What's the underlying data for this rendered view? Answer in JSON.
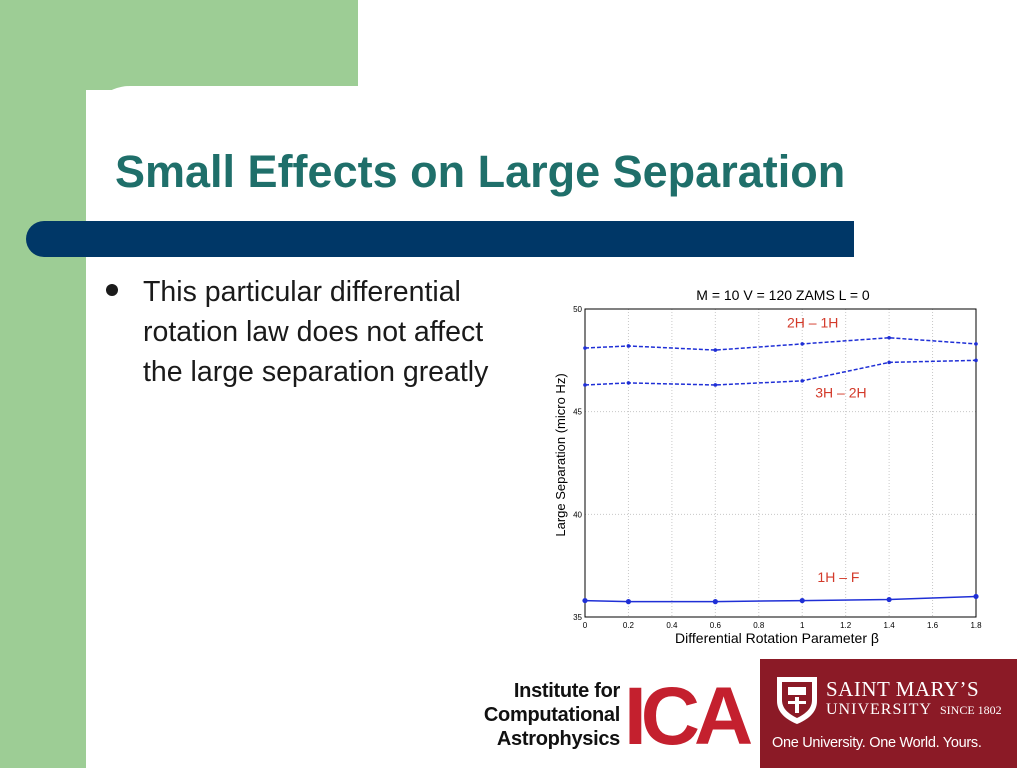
{
  "slide": {
    "title": "Small Effects on Large Separation",
    "bullets": [
      "This particular differential rotation law does not affect the large separation greatly"
    ]
  },
  "colors": {
    "title": "#1f6f6a",
    "bar": "#003767",
    "green": "#9dcd95",
    "series": "#1f2fd6",
    "annotation": "#d33a2a"
  },
  "chart_data": {
    "type": "line",
    "title": "M = 10  V = 120  ZAMS  L = 0",
    "xlabel": "Differential Rotation Parameter β",
    "ylabel": "Large Separation (micro Hz)",
    "xlim": [
      0,
      1.8
    ],
    "ylim": [
      35,
      50
    ],
    "xticks": [
      "0",
      "0.2",
      "0.4",
      "0.6",
      "0.8",
      "1",
      "1.2",
      "1.4",
      "1.6",
      "1.8"
    ],
    "yticks": [
      "35",
      "40",
      "45",
      "50"
    ],
    "grid": true,
    "series": [
      {
        "name": "2H – 1H",
        "style": "dashed",
        "x": [
          0,
          0.2,
          0.6,
          1.0,
          1.4,
          1.8
        ],
        "y": [
          48.1,
          48.2,
          48.0,
          48.3,
          48.6,
          48.3
        ]
      },
      {
        "name": "3H – 2H",
        "style": "dashed",
        "x": [
          0,
          0.2,
          0.6,
          1.0,
          1.4,
          1.8
        ],
        "y": [
          46.3,
          46.4,
          46.3,
          46.5,
          47.4,
          47.5
        ]
      },
      {
        "name": "1H – F",
        "style": "solid",
        "x": [
          0,
          0.2,
          0.6,
          1.0,
          1.4,
          1.8
        ],
        "y": [
          35.8,
          35.75,
          35.75,
          35.8,
          35.85,
          36.0
        ]
      }
    ]
  },
  "logos": {
    "ica": {
      "line1": "Institute for",
      "line2": "Computational",
      "line3": "Astrophysics",
      "mark": "ICA"
    },
    "smu": {
      "name1": "SAINT MARY’S",
      "name2": "UNIVERSITY",
      "since": "SINCE 1802",
      "tagline": "One University. One World. Yours."
    }
  }
}
